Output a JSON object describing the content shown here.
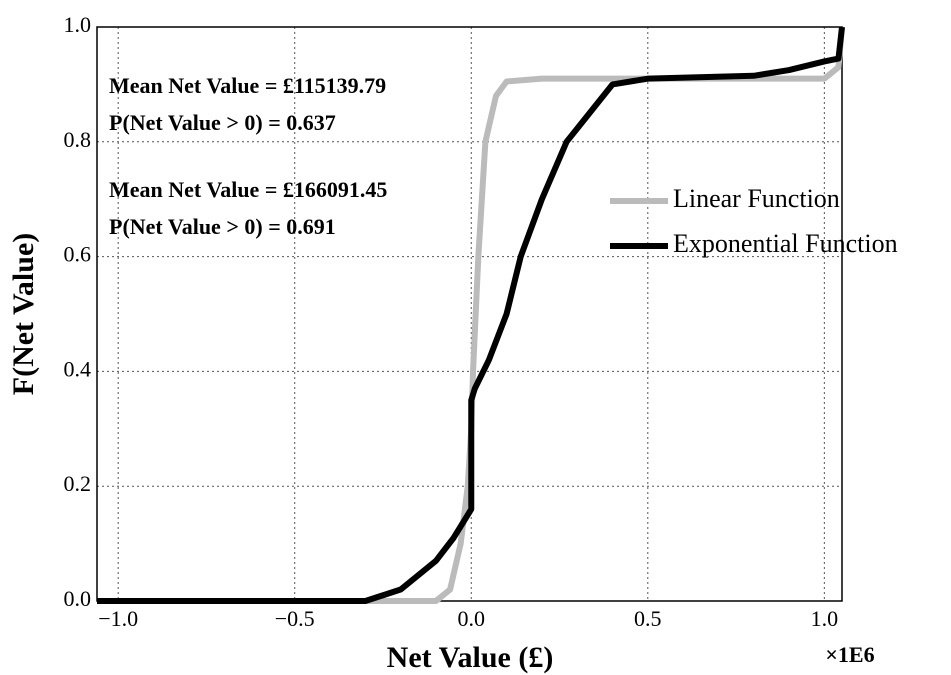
{
  "chart_data": {
    "type": "line",
    "xlabel": "Net Value (£)",
    "ylabel": "F(Net Value)",
    "x_offset_label": "×1E6",
    "xlim": [
      -1.06,
      1.05
    ],
    "ylim": [
      0,
      1
    ],
    "xticks": [
      {
        "value": -1,
        "label": "−1.0"
      },
      {
        "value": -0.5,
        "label": "−0.5"
      },
      {
        "value": 0,
        "label": "0.0"
      },
      {
        "value": 0.5,
        "label": "0.5"
      },
      {
        "value": 1,
        "label": "1.0"
      }
    ],
    "yticks": [
      {
        "value": 0,
        "label": "0.0"
      },
      {
        "value": 0.2,
        "label": "0.2"
      },
      {
        "value": 0.4,
        "label": "0.4"
      },
      {
        "value": 0.6,
        "label": "0.6"
      },
      {
        "value": 0.8,
        "label": "0.8"
      },
      {
        "value": 1,
        "label": "1.0"
      }
    ],
    "grid": true,
    "legend": "center right",
    "series": [
      {
        "name": "Linear Function",
        "color": "#bbbbbb",
        "x": [
          -1.06,
          -0.3,
          -0.1,
          -0.06,
          -0.03,
          -0.01,
          0,
          0.005,
          0.02,
          0.04,
          0.07,
          0.1,
          0.2,
          0.5,
          0.8,
          1.0,
          1.04,
          1.05
        ],
        "values": [
          0,
          0,
          0,
          0.02,
          0.1,
          0.2,
          0.3,
          0.4,
          0.6,
          0.8,
          0.88,
          0.905,
          0.91,
          0.91,
          0.91,
          0.91,
          0.93,
          1.0
        ]
      },
      {
        "name": "Exponential Function",
        "color": "#000000",
        "x": [
          -1.06,
          -0.3,
          -0.2,
          -0.1,
          -0.05,
          -0.01,
          0,
          0,
          0.01,
          0.05,
          0.1,
          0.14,
          0.2,
          0.27,
          0.4,
          0.5,
          0.8,
          0.9,
          1.0,
          1.04,
          1.05
        ],
        "values": [
          0,
          0,
          0.02,
          0.07,
          0.11,
          0.15,
          0.16,
          0.35,
          0.37,
          0.42,
          0.5,
          0.6,
          0.7,
          0.8,
          0.9,
          0.91,
          0.915,
          0.925,
          0.94,
          0.945,
          1.0
        ]
      }
    ],
    "annotations": [
      {
        "text": "Mean Net Value = £115139.79",
        "color": "#bbbbbb"
      },
      {
        "text": "P(Net Value > 0) = 0.637",
        "color": "#bbbbbb"
      },
      {
        "text": "Mean Net Value = £166091.45",
        "color": "#333333"
      },
      {
        "text": "P(Net Value > 0) = 0.691",
        "color": "#333333"
      }
    ]
  }
}
